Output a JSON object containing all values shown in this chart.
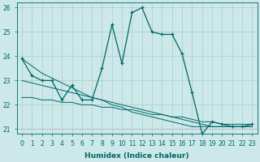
{
  "xlabel": "Humidex (Indice chaleur)",
  "x_values": [
    0,
    1,
    2,
    3,
    4,
    5,
    6,
    7,
    8,
    9,
    10,
    11,
    12,
    13,
    14,
    15,
    16,
    17,
    18,
    19,
    20,
    21,
    22,
    23
  ],
  "y_main": [
    23.9,
    23.2,
    23.0,
    23.0,
    22.2,
    22.8,
    22.2,
    22.2,
    23.5,
    25.3,
    23.7,
    25.8,
    26.0,
    25.0,
    24.9,
    24.9,
    24.1,
    22.5,
    20.8,
    21.3,
    21.2,
    21.1,
    21.1,
    21.2
  ],
  "y_line1": [
    23.9,
    23.6,
    23.3,
    23.1,
    22.9,
    22.7,
    22.5,
    22.3,
    22.2,
    22.0,
    21.9,
    21.7,
    21.6,
    21.5,
    21.4,
    21.3,
    21.2,
    21.1,
    21.1,
    21.1,
    21.1,
    21.1,
    21.1,
    21.1
  ],
  "y_line2": [
    23.0,
    22.9,
    22.8,
    22.7,
    22.6,
    22.5,
    22.4,
    22.3,
    22.2,
    22.1,
    22.0,
    21.9,
    21.8,
    21.7,
    21.6,
    21.5,
    21.4,
    21.3,
    21.2,
    21.1,
    21.1,
    21.1,
    21.1,
    21.1
  ],
  "y_line3": [
    22.3,
    22.3,
    22.2,
    22.2,
    22.1,
    22.1,
    22.0,
    22.0,
    21.9,
    21.9,
    21.8,
    21.8,
    21.7,
    21.6,
    21.6,
    21.5,
    21.5,
    21.4,
    21.3,
    21.3,
    21.2,
    21.2,
    21.2,
    21.2
  ],
  "ylim_min": 20.8,
  "ylim_max": 26.2,
  "yticks": [
    21,
    22,
    23,
    24,
    25,
    26
  ],
  "bg_color": "#cce8e8",
  "grid_color": "#aacccc",
  "line_color": "#006666",
  "marker": "+"
}
